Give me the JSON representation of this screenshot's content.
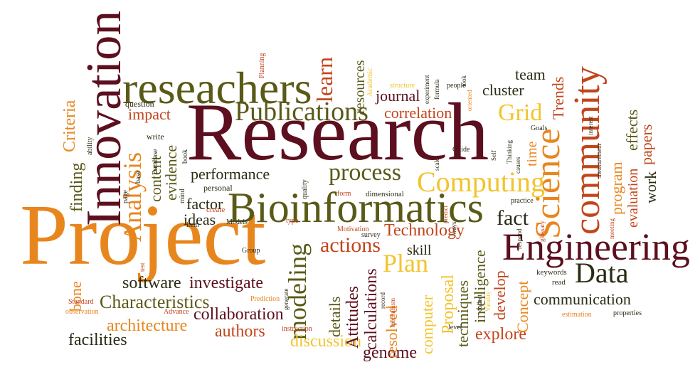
{
  "words": [
    {
      "key": "Research",
      "text": "Research"
    },
    {
      "key": "Project",
      "text": "Project"
    },
    {
      "key": "Innovation",
      "text": "Innovation"
    },
    {
      "key": "reseachers",
      "text": "reseachers"
    },
    {
      "key": "Bioinformatics",
      "text": "Bioinformatics"
    },
    {
      "key": "Engineering",
      "text": "Engineering"
    },
    {
      "key": "community",
      "text": "community"
    },
    {
      "key": "Science",
      "text": "Science"
    },
    {
      "key": "Publications",
      "text": "Publications"
    },
    {
      "key": "Computing",
      "text": "Computing"
    },
    {
      "key": "Data",
      "text": "Data"
    },
    {
      "key": "process",
      "text": "process"
    },
    {
      "key": "Analysis",
      "text": "Analysis"
    },
    {
      "key": "modeling",
      "text": "modeling"
    },
    {
      "key": "Plan",
      "text": "Plan"
    },
    {
      "key": "Grid",
      "text": "Grid"
    },
    {
      "key": "fact",
      "text": "fact"
    },
    {
      "key": "actions",
      "text": "actions"
    },
    {
      "key": "learn",
      "text": "learn"
    },
    {
      "key": "Technology",
      "text": "Technology"
    },
    {
      "key": "Characteristics",
      "text": "Characteristics"
    },
    {
      "key": "architecture",
      "text": "architecture"
    },
    {
      "key": "software",
      "text": "software"
    },
    {
      "key": "investigate",
      "text": "investigate"
    },
    {
      "key": "collaboration",
      "text": "collaboration"
    },
    {
      "key": "authors",
      "text": "authors"
    },
    {
      "key": "facilities",
      "text": "facilities"
    },
    {
      "key": "discussion",
      "text": "discussion"
    },
    {
      "key": "genome",
      "text": "genome"
    },
    {
      "key": "explore",
      "text": "explore"
    },
    {
      "key": "communication",
      "text": "communication"
    },
    {
      "key": "correlation",
      "text": "correlation"
    },
    {
      "key": "journal",
      "text": "journal"
    },
    {
      "key": "cluster",
      "text": "cluster"
    },
    {
      "key": "team",
      "text": "team"
    },
    {
      "key": "Trends",
      "text": "Trends"
    },
    {
      "key": "performance",
      "text": "performance"
    },
    {
      "key": "factor",
      "text": "factor"
    },
    {
      "key": "ideas",
      "text": "ideas"
    },
    {
      "key": "impact",
      "text": "impact"
    },
    {
      "key": "Criteria",
      "text": "Criteria"
    },
    {
      "key": "finding",
      "text": "finding"
    },
    {
      "key": "content",
      "text": "content"
    },
    {
      "key": "evidence",
      "text": "evidence"
    },
    {
      "key": "bone",
      "text": "bone"
    },
    {
      "key": "Attitudes",
      "text": "Attitudes"
    },
    {
      "key": "calculations",
      "text": "calculations"
    },
    {
      "key": "details",
      "text": "details"
    },
    {
      "key": "resolved",
      "text": "resolved"
    },
    {
      "key": "computer",
      "text": "computer"
    },
    {
      "key": "Proposal",
      "text": "Proposal"
    },
    {
      "key": "techniques",
      "text": "techniques"
    },
    {
      "key": "intelligence",
      "text": "intelligence"
    },
    {
      "key": "develop",
      "text": "develop"
    },
    {
      "key": "Concept",
      "text": "Concept"
    },
    {
      "key": "skill",
      "text": "skill"
    },
    {
      "key": "evaluation",
      "text": "evaluation"
    },
    {
      "key": "effects",
      "text": "effects"
    },
    {
      "key": "program",
      "text": "program"
    },
    {
      "key": "papers",
      "text": "papers"
    },
    {
      "key": "work",
      "text": "work"
    },
    {
      "key": "time",
      "text": "time"
    },
    {
      "key": "resources",
      "text": "resources"
    },
    {
      "key": "Planning",
      "text": "Planning"
    },
    {
      "key": "question",
      "text": "question"
    },
    {
      "key": "ability",
      "text": "ability"
    },
    {
      "key": "write",
      "text": "write"
    },
    {
      "key": "Database",
      "text": "Database"
    },
    {
      "key": "base",
      "text": "base"
    },
    {
      "key": "book",
      "text": "book"
    },
    {
      "key": "page",
      "text": "page"
    },
    {
      "key": "mind",
      "text": "mind"
    },
    {
      "key": "personal",
      "text": "personal"
    },
    {
      "key": "quality",
      "text": "quality"
    },
    {
      "key": "create",
      "text": "create"
    },
    {
      "key": "item",
      "text": "item"
    },
    {
      "key": "Models",
      "text": "Models"
    },
    {
      "key": "type",
      "text": "type"
    },
    {
      "key": "form",
      "text": "form"
    },
    {
      "key": "dimensional",
      "text": "dimensional"
    },
    {
      "key": "Group",
      "text": "Group"
    },
    {
      "key": "test",
      "text": "test"
    },
    {
      "key": "Motivation",
      "text": "Motivation"
    },
    {
      "key": "survey",
      "text": "survey"
    },
    {
      "key": "Standard",
      "text": "Standard"
    },
    {
      "key": "observation",
      "text": "observation"
    },
    {
      "key": "Advance",
      "text": "Advance"
    },
    {
      "key": "Prediction",
      "text": "Prediction"
    },
    {
      "key": "generate",
      "text": "generate"
    },
    {
      "key": "record",
      "text": "record"
    },
    {
      "key": "mechanism",
      "text": "mechanism"
    },
    {
      "key": "instruction",
      "text": "instruction"
    },
    {
      "key": "level",
      "text": "level"
    },
    {
      "key": "collect",
      "text": "collect"
    },
    {
      "key": "Validity",
      "text": "Validity"
    },
    {
      "key": "keywords",
      "text": "keywords"
    },
    {
      "key": "read",
      "text": "read"
    },
    {
      "key": "estimation",
      "text": "estimation"
    },
    {
      "key": "properties",
      "text": "properties"
    },
    {
      "key": "glossary",
      "text": "glossary"
    },
    {
      "key": "measurement",
      "text": "measurement"
    },
    {
      "key": "interest",
      "text": "interest"
    },
    {
      "key": "meeting",
      "text": "meeting"
    },
    {
      "key": "respond",
      "text": "respond"
    },
    {
      "key": "practice",
      "text": "practice"
    },
    {
      "key": "ways",
      "text": "ways"
    },
    {
      "key": "predict",
      "text": "predict"
    },
    {
      "key": "Thinking",
      "text": "Thinking"
    },
    {
      "key": "causes",
      "text": "causes"
    },
    {
      "key": "Goals",
      "text": "Goals"
    },
    {
      "key": "Guide",
      "text": "Guide"
    },
    {
      "key": "Self",
      "text": "Self"
    },
    {
      "key": "scale",
      "text": "scale"
    },
    {
      "key": "Academic",
      "text": "Academic"
    },
    {
      "key": "structure",
      "text": "structure"
    },
    {
      "key": "experiment",
      "text": "experiment"
    },
    {
      "key": "formula",
      "text": "formula"
    },
    {
      "key": "people",
      "text": "people"
    },
    {
      "key": "look",
      "text": "look"
    },
    {
      "key": "oriented",
      "text": "oriented"
    }
  ]
}
